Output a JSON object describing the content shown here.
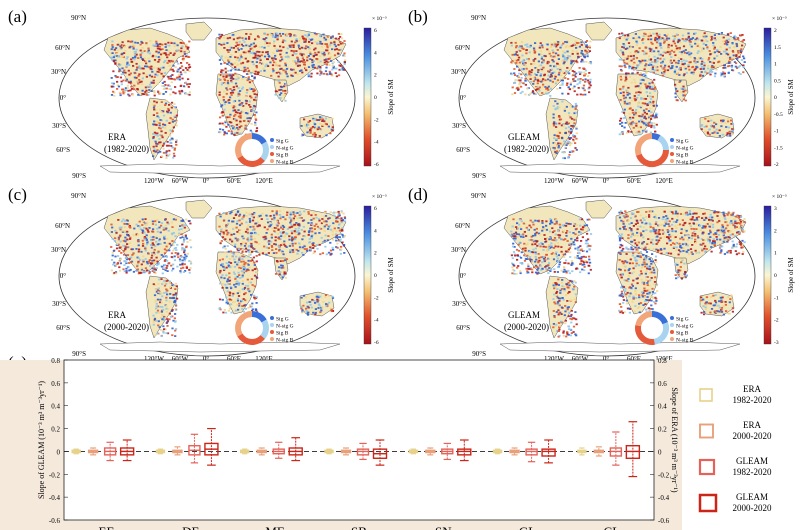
{
  "panels": [
    {
      "label": "(a)",
      "name": "ERA",
      "period": "(1982-2020)",
      "cb_exp": "× 10⁻³",
      "cb_title": "Slope of SM",
      "cb_ticks": [
        "6",
        "4",
        "2",
        "0",
        "-2",
        "-4",
        "-6"
      ],
      "legend": [
        "Sig G",
        "N-sig G",
        "Sig B",
        "N-sig B"
      ]
    },
    {
      "label": "(b)",
      "name": "GLEAM",
      "period": "(1982-2020)",
      "cb_exp": "× 10⁻³",
      "cb_title": "Slope of SM",
      "cb_ticks": [
        "2",
        "1.5",
        "1",
        "0.5",
        "0",
        "-0.5",
        "-1",
        "-1.5",
        "-2"
      ],
      "legend": [
        "Sig G",
        "N-sig G",
        "Sig B",
        "N-sig B"
      ]
    },
    {
      "label": "(c)",
      "name": "ERA",
      "period": "(2000-2020)",
      "cb_exp": "× 10⁻³",
      "cb_title": "Slope of SM",
      "cb_ticks": [
        "6",
        "4",
        "2",
        "0",
        "-2",
        "-4",
        "-6"
      ],
      "legend": [
        "Sig G",
        "N-sig G",
        "Sig B",
        "N-sig B"
      ]
    },
    {
      "label": "(d)",
      "name": "GLEAM",
      "period": "(2000-2020)",
      "cb_exp": "× 10⁻³",
      "cb_title": "Slope of SM",
      "cb_ticks": [
        "3",
        "2",
        "1",
        "0",
        "-1",
        "-2",
        "-3"
      ],
      "legend": [
        "Sig G",
        "N-sig G",
        "Sig B",
        "N-sig B"
      ]
    }
  ],
  "map_lat_labels": [
    "90°N",
    "60°N",
    "30°N",
    "0°",
    "30°S",
    "60°S",
    "90°S"
  ],
  "map_lon_labels": [
    "120°W",
    "60°W",
    "0°",
    "60°E",
    "120°E"
  ],
  "colors": {
    "cb_top": "#2b1d9e",
    "cb_mid": "#fbf6d2",
    "cb_bottom": "#a8111a",
    "era_8220": "#e6d28a",
    "era_0020": "#e8a07a",
    "gleam_8220": "#e4625a",
    "gleam_0020": "#cc2418",
    "chart_bg": "#f5e9dc"
  },
  "chart_data": {
    "type": "box",
    "panel_label": "(e)",
    "categories": [
      "EF",
      "DF",
      "MF",
      "SB",
      "SN",
      "GL",
      "CL"
    ],
    "ylabel_left": "Slope of GLEAM (10⁻³ m³ m⁻³yr⁻¹)",
    "ylabel_right": "Slope of ERA (10⁻³ m³ m⁻³yr⁻¹)",
    "ylim": [
      -0.6,
      0.8
    ],
    "yticks": [
      "0.8",
      "0.6",
      "0.4",
      "0.2",
      "0",
      "-0.2",
      "-0.4",
      "-0.6"
    ],
    "series": [
      {
        "name": "ERA 1982-2020",
        "color": "#e6d28a",
        "boxes": [
          [
            -0.02,
            -0.01,
            0.0,
            0.01,
            0.02
          ],
          [
            -0.02,
            -0.01,
            0.0,
            0.01,
            0.02
          ],
          [
            -0.02,
            -0.01,
            0.0,
            0.01,
            0.02
          ],
          [
            -0.02,
            -0.01,
            0.0,
            0.01,
            0.02
          ],
          [
            -0.02,
            -0.01,
            0.0,
            0.01,
            0.02
          ],
          [
            -0.02,
            -0.01,
            0.0,
            0.01,
            0.02
          ],
          [
            -0.03,
            -0.01,
            0.0,
            0.01,
            0.03
          ]
        ]
      },
      {
        "name": "ERA 2000-2020",
        "color": "#e8a07a",
        "boxes": [
          [
            -0.03,
            -0.01,
            0.0,
            0.01,
            0.03
          ],
          [
            -0.03,
            -0.01,
            0.0,
            0.01,
            0.04
          ],
          [
            -0.03,
            -0.01,
            0.0,
            0.01,
            0.03
          ],
          [
            -0.03,
            -0.01,
            0.0,
            0.01,
            0.03
          ],
          [
            -0.03,
            -0.01,
            0.0,
            0.01,
            0.03
          ],
          [
            -0.03,
            -0.01,
            0.0,
            0.01,
            0.03
          ],
          [
            -0.04,
            -0.01,
            0.0,
            0.01,
            0.04
          ]
        ]
      },
      {
        "name": "GLEAM 1982-2020",
        "color": "#e4625a",
        "boxes": [
          [
            -0.08,
            -0.03,
            0.0,
            0.03,
            0.08
          ],
          [
            -0.1,
            -0.03,
            0.01,
            0.05,
            0.15
          ],
          [
            -0.06,
            -0.02,
            0.0,
            0.02,
            0.08
          ],
          [
            -0.07,
            -0.03,
            0.0,
            0.02,
            0.07
          ],
          [
            -0.07,
            -0.02,
            0.0,
            0.02,
            0.07
          ],
          [
            -0.09,
            -0.03,
            0.0,
            0.02,
            0.08
          ],
          [
            -0.12,
            -0.04,
            0.0,
            0.03,
            0.17
          ]
        ]
      },
      {
        "name": "GLEAM 2000-2020",
        "color": "#cc2418",
        "boxes": [
          [
            -0.08,
            -0.03,
            0.0,
            0.03,
            0.1
          ],
          [
            -0.12,
            -0.03,
            0.02,
            0.07,
            0.2
          ],
          [
            -0.08,
            -0.03,
            0.0,
            0.03,
            0.12
          ],
          [
            -0.12,
            -0.06,
            -0.02,
            0.02,
            0.1
          ],
          [
            -0.08,
            -0.03,
            0.0,
            0.02,
            0.1
          ],
          [
            -0.1,
            -0.04,
            0.0,
            0.02,
            0.1
          ],
          [
            -0.22,
            -0.06,
            0.0,
            0.05,
            0.26
          ]
        ]
      }
    ],
    "legend": [
      {
        "line1": "ERA",
        "line2": "1982-2020"
      },
      {
        "line1": "ERA",
        "line2": "2000-2020"
      },
      {
        "line1": "GLEAM",
        "line2": "1982-2020"
      },
      {
        "line1": "GLEAM",
        "line2": "2000-2020"
      }
    ]
  }
}
